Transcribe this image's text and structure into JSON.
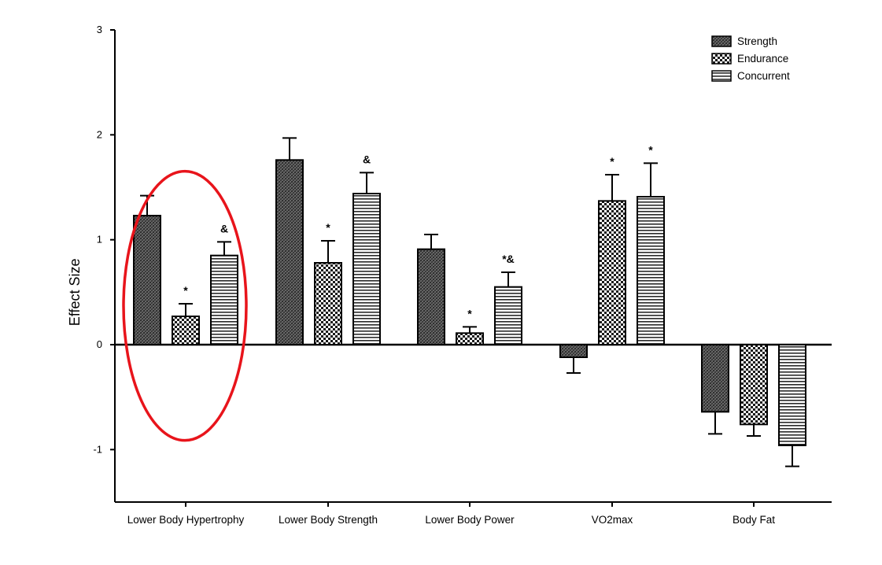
{
  "chart_data": {
    "type": "bar",
    "title": "",
    "xlabel": "",
    "ylabel": "Effect Size",
    "ylim": [
      -1.5,
      3
    ],
    "yticks": [
      -1,
      0,
      1,
      2,
      3
    ],
    "yticks_labels": [
      "-1",
      "0",
      "1",
      "2",
      "3"
    ],
    "grid": false,
    "legend_position": "top-right",
    "categories": [
      "Lower Body Hypertrophy",
      "Lower Body Strength",
      "Lower Body Power",
      "VO2max",
      "Body Fat"
    ],
    "series": [
      {
        "name": "Strength",
        "pattern": "dark-crosshatch",
        "values": [
          1.23,
          1.76,
          0.91,
          -0.12,
          -0.64
        ],
        "errors": [
          0.19,
          0.21,
          0.14,
          0.15,
          0.21
        ],
        "annotations": [
          "",
          "",
          "",
          "",
          ""
        ]
      },
      {
        "name": "Endurance",
        "pattern": "checkerboard",
        "values": [
          0.27,
          0.78,
          0.11,
          1.37,
          -0.76
        ],
        "errors": [
          0.12,
          0.21,
          0.06,
          0.25,
          0.11
        ],
        "annotations": [
          "*",
          "*",
          "*",
          "*",
          ""
        ]
      },
      {
        "name": "Concurrent",
        "pattern": "horizontal-stripes",
        "values": [
          0.85,
          1.44,
          0.55,
          1.41,
          -0.96
        ],
        "errors": [
          0.13,
          0.2,
          0.14,
          0.32,
          0.2
        ],
        "annotations": [
          "&",
          "&",
          "*&",
          "*",
          ""
        ]
      }
    ],
    "highlight": {
      "category": "Lower Body Hypertrophy",
      "shape": "ellipse",
      "color": "#e8141b"
    },
    "colors": {
      "bar_fill_dark": "#4a4a4a",
      "bar_stroke": "#000000",
      "axis": "#000000"
    }
  }
}
